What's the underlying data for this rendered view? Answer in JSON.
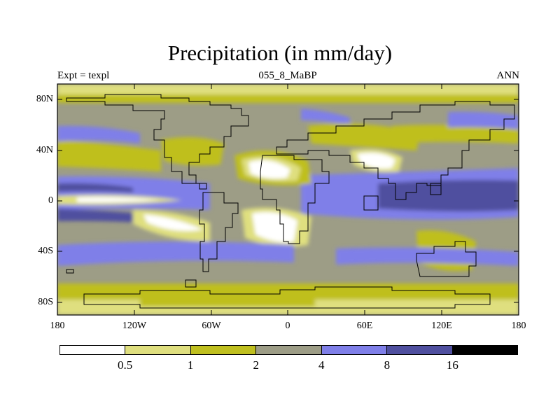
{
  "header": {
    "title": "Precipitation (in mm/day)",
    "left": "Expt = texpl",
    "center": "055_8_MaBP",
    "right": "ANN"
  },
  "map": {
    "lat_labels": [
      "80N",
      "40N",
      "0",
      "40S",
      "80S"
    ],
    "lat_values": [
      80,
      40,
      0,
      -40,
      -80
    ],
    "lon_labels": [
      "180",
      "120W",
      "60W",
      "0",
      "60E",
      "120E",
      "180"
    ],
    "lon_values": [
      -180,
      -120,
      -60,
      0,
      60,
      120,
      180
    ],
    "lon_range": [
      -180,
      180
    ],
    "lat_range": [
      -90,
      90
    ]
  },
  "colorbar": {
    "levels": [
      "0.5",
      "1",
      "2",
      "4",
      "8",
      "16"
    ],
    "colors": [
      "#ffffff",
      "#dfdf7f",
      "#bfbf1f",
      "#9d9d86",
      "#7f7fe8",
      "#4f4f9f",
      "#000000"
    ]
  }
}
